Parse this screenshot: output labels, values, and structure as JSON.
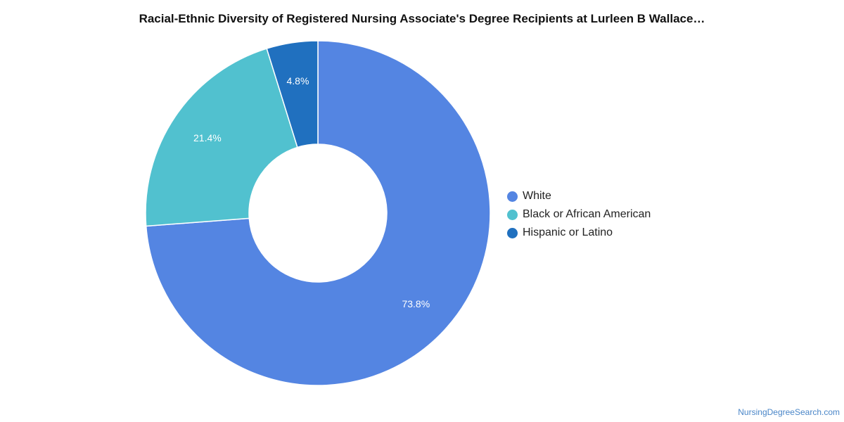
{
  "chart_data": {
    "type": "pie",
    "variant": "donut",
    "title": "Racial-Ethnic Diversity of Registered Nursing Associate's Degree Recipients at Lurleen B Wallace…",
    "slices": [
      {
        "label": "White",
        "value": 73.8,
        "display": "73.8%",
        "color": "#5485e2"
      },
      {
        "label": "Black or African American",
        "value": 21.4,
        "display": "21.4%",
        "color": "#51c1cf"
      },
      {
        "label": "Hispanic or Latino",
        "value": 4.8,
        "display": "4.8%",
        "color": "#2070bf"
      }
    ],
    "legend_position": "right",
    "start_angle": "12 o'clock",
    "direction": "clockwise"
  },
  "legend": {
    "items": [
      {
        "label": "White",
        "color": "#5485e2"
      },
      {
        "label": "Black or African American",
        "color": "#51c1cf"
      },
      {
        "label": "Hispanic or Latino",
        "color": "#2070bf"
      }
    ]
  },
  "watermark": "NursingDegreeSearch.com"
}
